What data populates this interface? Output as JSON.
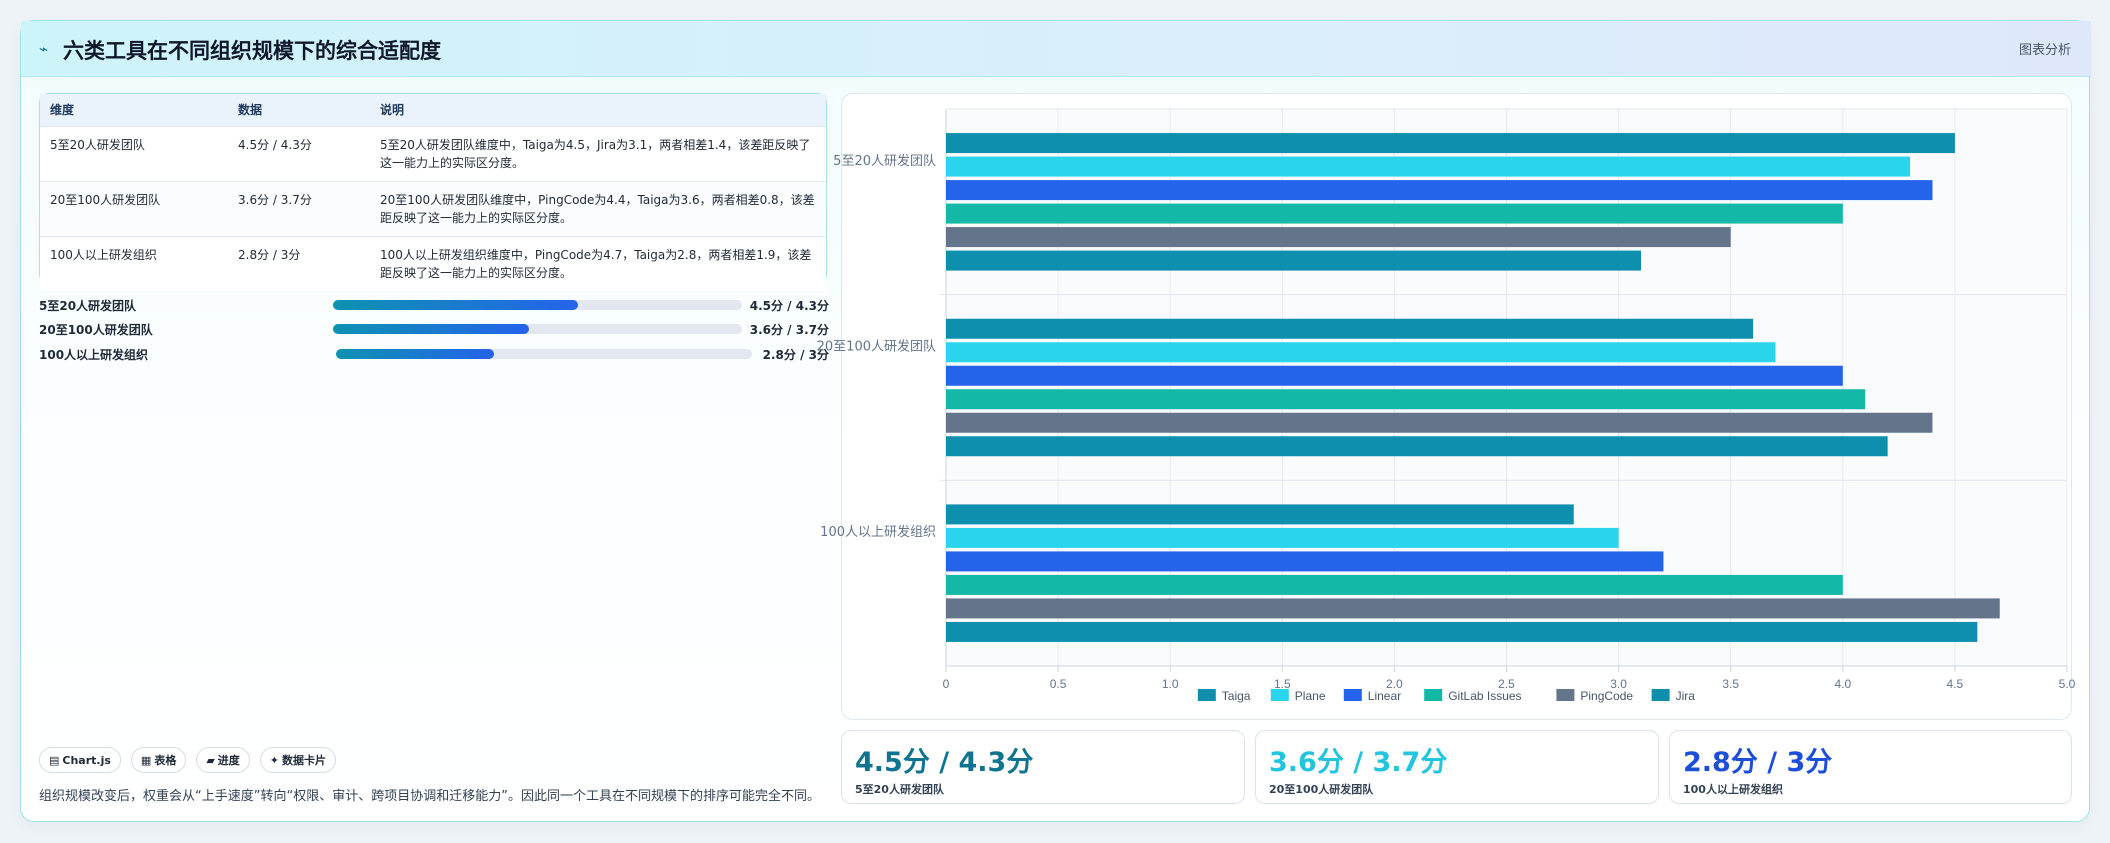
{
  "header": {
    "icon": "chart-trend-icon",
    "title": "六类工具在不同组织规模下的综合适配度",
    "link": "图表分析"
  },
  "table": {
    "headers": [
      "维度",
      "数据",
      "说明"
    ],
    "rows": [
      [
        "5至20人研发团队",
        "4.5分 / 4.3分",
        "5至20人研发团队维度中，Taiga为4.5，Jira为3.1，两者相差1.4，该差距反映了这一能力上的实际区分度。"
      ],
      [
        "20至100人研发团队",
        "3.6分 / 3.7分",
        "20至100人研发团队维度中，PingCode为4.4，Taiga为3.6，两者相差0.8，该差距反映了这一能力上的实际区分度。"
      ],
      [
        "100人以上研发组织",
        "2.8分 / 3分",
        "100人以上研发组织维度中，PingCode为4.7，Taiga为2.8，两者相差1.9，该差距反映了这一能力上的实际区分度。"
      ]
    ]
  },
  "progress": [
    {
      "label": "5至20人研发团队",
      "value": "4.5分 / 4.3分",
      "fraction": 0.6
    },
    {
      "label": "20至100人研发团队",
      "value": "3.6分 / 3.7分",
      "fraction": 0.48
    },
    {
      "label": "100人以上研发组织",
      "value": "2.8分 / 3分",
      "fraction": 0.38
    }
  ],
  "tags": [
    {
      "icon": "chart-icon",
      "glyph": "▤",
      "label": "Chart.js"
    },
    {
      "icon": "table-icon",
      "glyph": "▦",
      "label": "表格"
    },
    {
      "icon": "progress-icon",
      "glyph": "▰",
      "label": "进度"
    },
    {
      "icon": "sparkle-icon",
      "glyph": "✦",
      "label": "数据卡片"
    }
  ],
  "note": "组织规模改变后，权重会从“上手速度”转向“权限、审计、跨项目协调和迁移能力”。因此同一个工具在不同规模下的排序可能完全不同。",
  "stats": [
    {
      "value": "4.5分 / 4.3分",
      "label": "5至20人研发团队",
      "color": "#0e7490"
    },
    {
      "value": "3.6分 / 3.7分",
      "label": "20至100人研发团队",
      "color": "#22c5dd"
    },
    {
      "value": "2.8分 / 3分",
      "label": "100人以上研发组织",
      "color": "#1d4ed8"
    }
  ],
  "chart_data": {
    "type": "bar",
    "orientation": "horizontal",
    "categories": [
      "5至20人研发团队",
      "20至100人研发团队",
      "100人以上研发组织"
    ],
    "series": [
      {
        "name": "Taiga",
        "values": [
          4.5,
          3.6,
          2.8
        ],
        "color": "#0e8fae"
      },
      {
        "name": "Plane",
        "values": [
          4.3,
          3.7,
          3.0
        ],
        "color": "#2ad4ec"
      },
      {
        "name": "Linear",
        "values": [
          4.4,
          4.0,
          3.2
        ],
        "color": "#2563eb"
      },
      {
        "name": "GitLab Issues",
        "values": [
          4.0,
          4.1,
          4.0
        ],
        "color": "#14b8a6"
      },
      {
        "name": "PingCode",
        "values": [
          3.5,
          4.4,
          4.7
        ],
        "color": "#64748b"
      },
      {
        "name": "Jira",
        "values": [
          3.1,
          4.2,
          4.6
        ],
        "color": "#0e8fae"
      }
    ],
    "xlim": [
      0,
      5
    ],
    "xticks": [
      "0",
      "0.5",
      "1.0",
      "1.5",
      "2.0",
      "2.5",
      "3.0",
      "3.5",
      "4.0",
      "4.5",
      "5.0"
    ],
    "grid": true,
    "legend": "bottom"
  }
}
